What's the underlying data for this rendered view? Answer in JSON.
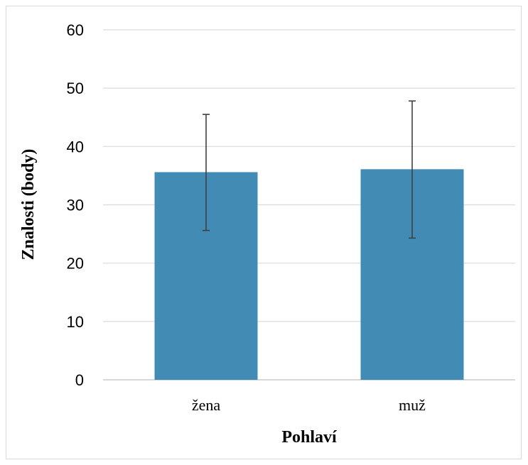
{
  "chart_data": {
    "type": "bar",
    "title": "",
    "xlabel": "Pohlaví",
    "ylabel": "Znalosti (body)",
    "categories": [
      "žena",
      "muž"
    ],
    "values": [
      35.6,
      36.1
    ],
    "error_low": [
      25.6,
      24.3
    ],
    "error_high": [
      45.5,
      47.8
    ],
    "ylim": [
      0,
      60
    ],
    "yticks": [
      "0",
      "10",
      "20",
      "30",
      "40",
      "50",
      "60"
    ],
    "grid": true,
    "legend": "none",
    "colors": {
      "bar": "#428bb4",
      "error": "#404040",
      "grid": "#d9d9d9",
      "axis": "#bfbfbf"
    }
  }
}
